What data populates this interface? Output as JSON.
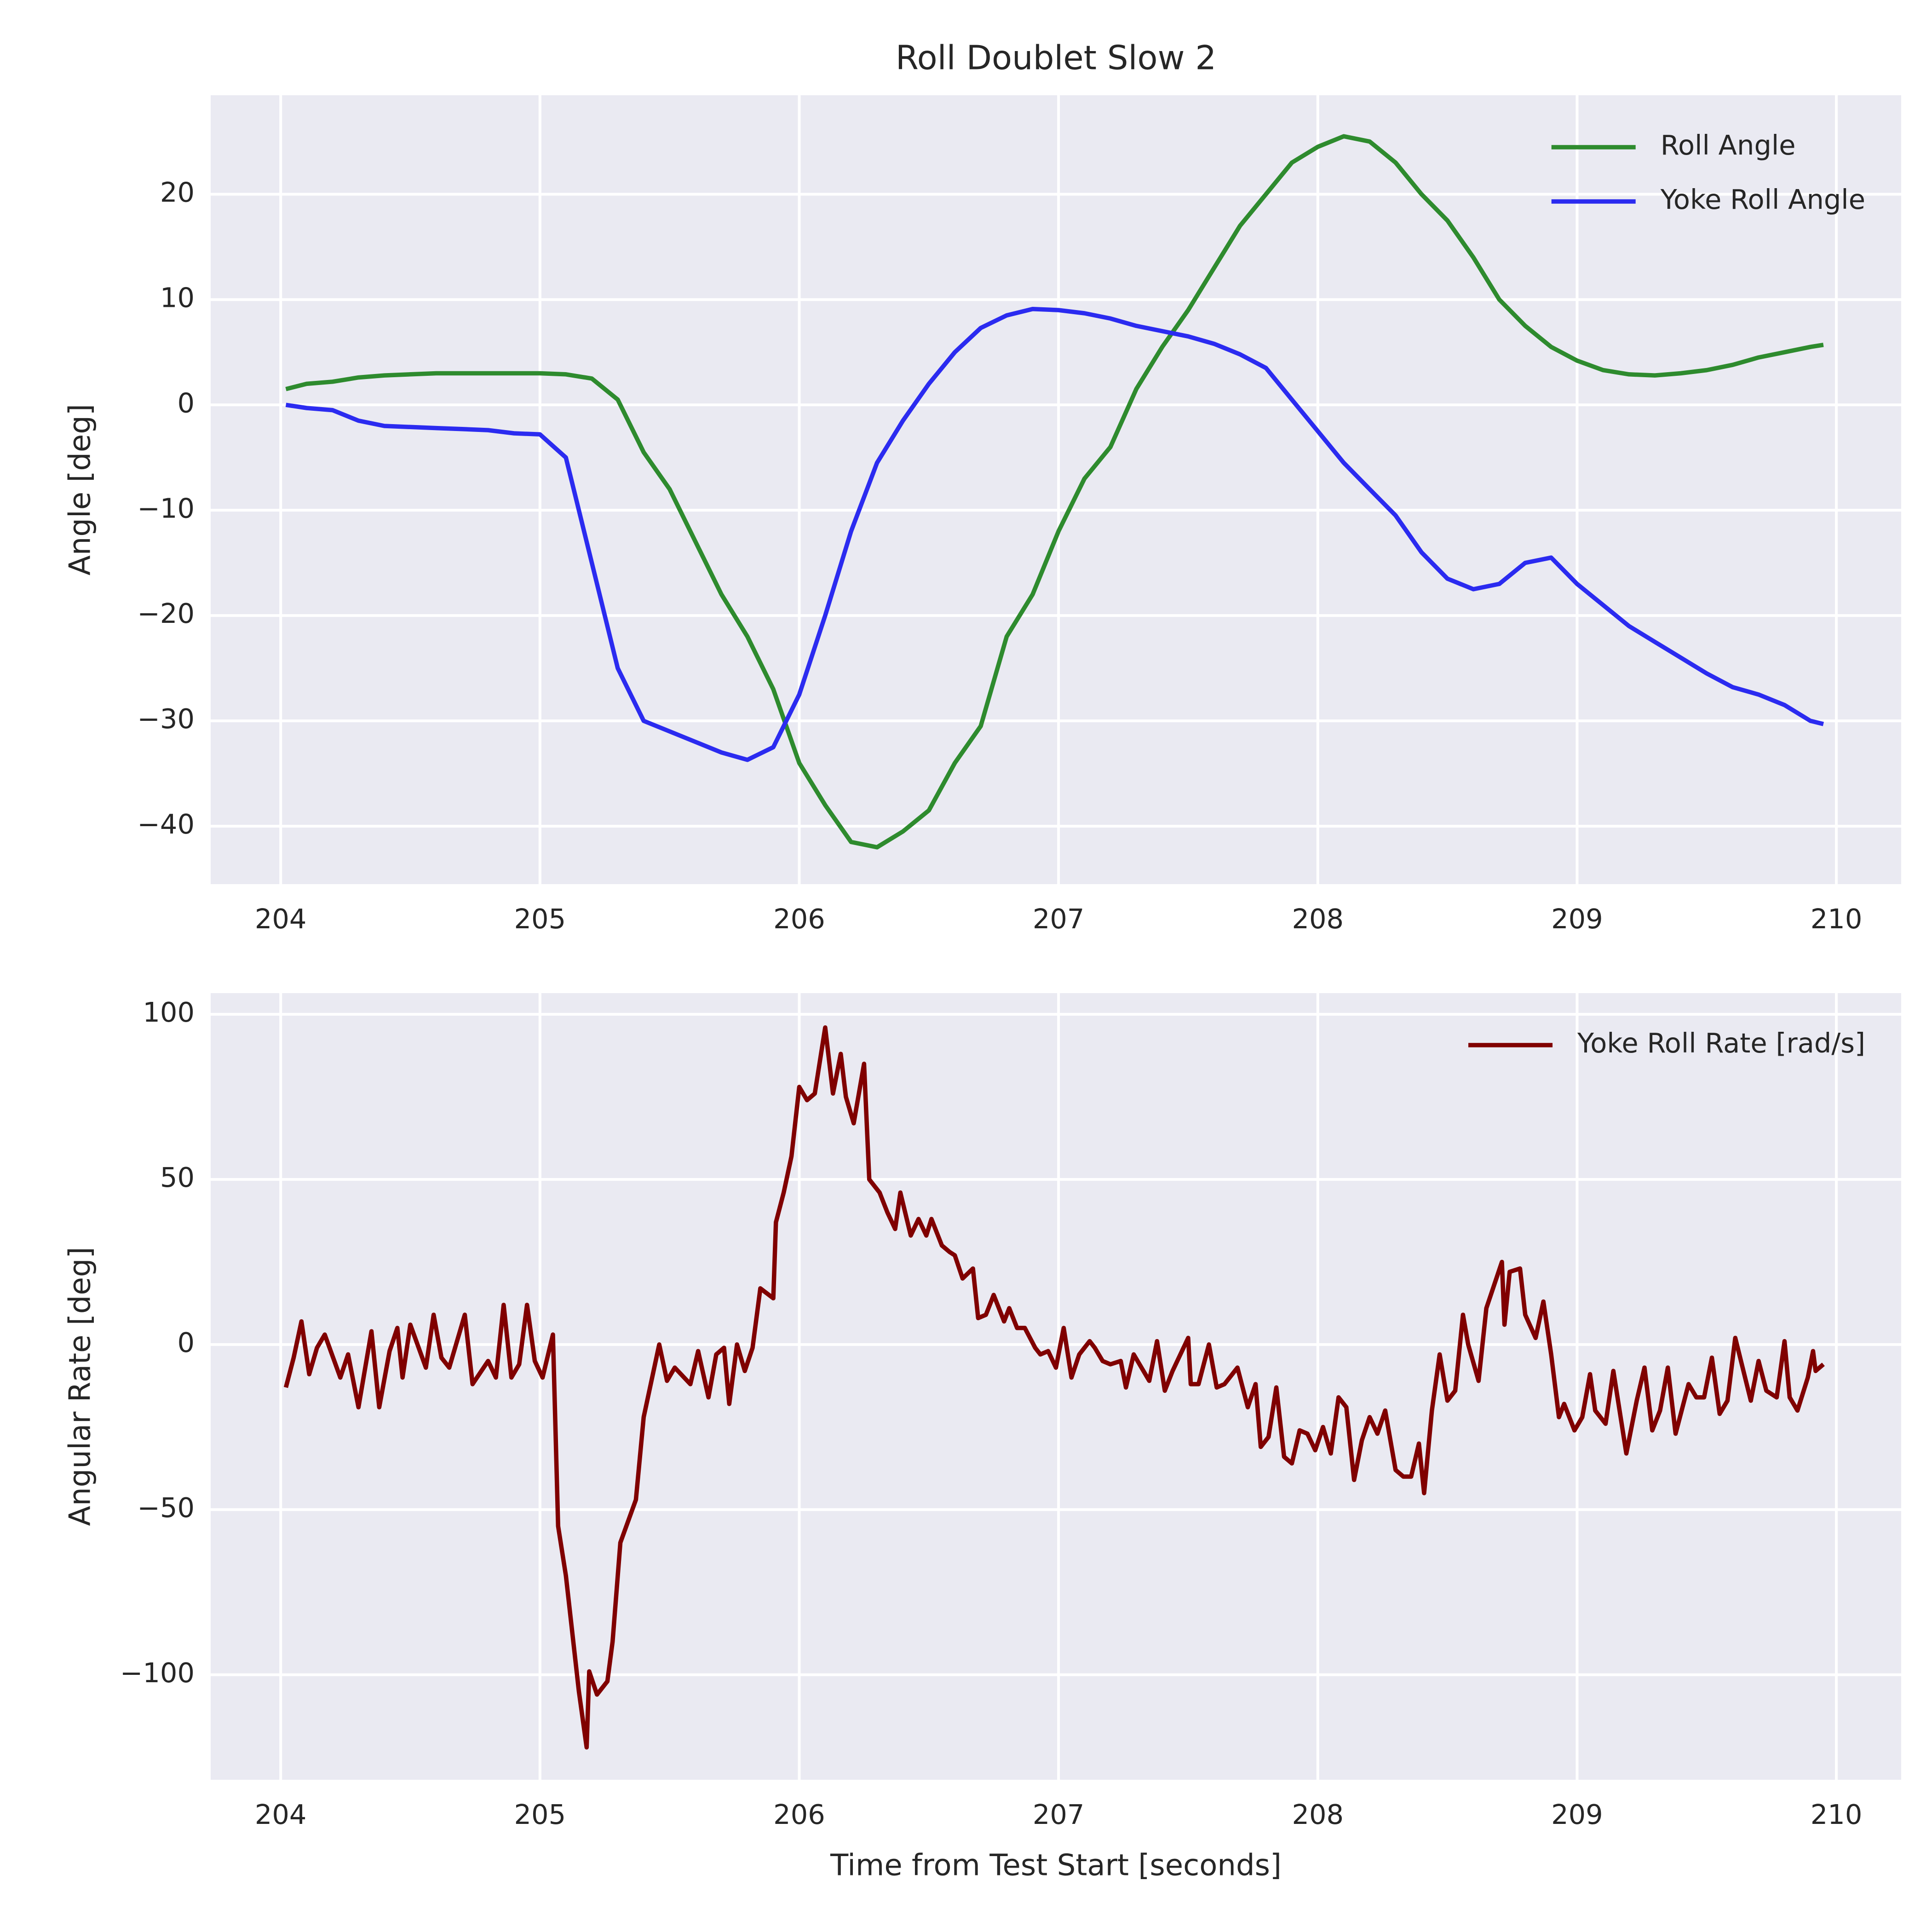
{
  "chart_data": [
    {
      "type": "line",
      "title": "Roll Doublet Slow 2",
      "ylabel": "Angle [deg]",
      "x": [
        204.02,
        204.1,
        204.2,
        204.3,
        204.4,
        204.5,
        204.6,
        204.7,
        204.8,
        204.9,
        205.0,
        205.1,
        205.2,
        205.3,
        205.4,
        205.5,
        205.6,
        205.7,
        205.8,
        205.9,
        206.0,
        206.1,
        206.2,
        206.3,
        206.4,
        206.5,
        206.6,
        206.7,
        206.8,
        206.9,
        207.0,
        207.1,
        207.2,
        207.3,
        207.4,
        207.5,
        207.6,
        207.7,
        207.8,
        207.9,
        208.0,
        208.1,
        208.2,
        208.3,
        208.4,
        208.5,
        208.6,
        208.7,
        208.8,
        208.9,
        209.0,
        209.1,
        209.2,
        209.3,
        209.4,
        209.5,
        209.6,
        209.7,
        209.8,
        209.9,
        209.95
      ],
      "series": [
        {
          "name": "Roll Angle",
          "color": "#2e8b2e",
          "values": [
            1.5,
            2,
            2.2,
            2.6,
            2.8,
            2.9,
            3,
            3,
            3,
            3,
            3,
            2.9,
            2.5,
            0.5,
            -4.5,
            -8,
            -13,
            -18,
            -22,
            -27,
            -34,
            -38,
            -41.5,
            -42,
            -40.5,
            -38.5,
            -34,
            -30.5,
            -22,
            -18,
            -12,
            -7,
            -4,
            1.5,
            5.5,
            9,
            13,
            17,
            20,
            23,
            24.5,
            25.5,
            25,
            23,
            20,
            17.5,
            14,
            10,
            7.5,
            5.5,
            4.2,
            3.3,
            2.9,
            2.8,
            3,
            3.3,
            3.8,
            4.5,
            5,
            5.5,
            5.7
          ]
        },
        {
          "name": "Yoke Roll Angle",
          "color": "#2b2bf0",
          "values": [
            0,
            -0.3,
            -0.5,
            -1.5,
            -2,
            -2.1,
            -2.2,
            -2.3,
            -2.4,
            -2.7,
            -2.8,
            -5,
            -15,
            -25,
            -30,
            -31,
            -32,
            -33,
            -33.7,
            -32.5,
            -27.5,
            -20,
            -12,
            -5.5,
            -1.5,
            2,
            5,
            7.3,
            8.5,
            9.1,
            9,
            8.7,
            8.2,
            7.5,
            7,
            6.5,
            5.8,
            4.8,
            3.5,
            0.5,
            -2.5,
            -5.5,
            -8,
            -10.5,
            -14,
            -16.5,
            -17.5,
            -17,
            -15,
            -14.5,
            -17,
            -19,
            -21,
            -22.5,
            -24,
            -25.5,
            -26.8,
            -27.5,
            -28.5,
            -30,
            -30.3
          ]
        }
      ],
      "xlim": [
        203.73,
        210.25
      ],
      "ylim": [
        -45.5,
        29.4
      ],
      "xticks": [
        204,
        205,
        206,
        207,
        208,
        209,
        210
      ],
      "yticks": [
        {
          "value": -40,
          "label": "−40"
        },
        {
          "value": -30,
          "label": "−30"
        },
        {
          "value": -20,
          "label": "−20"
        },
        {
          "value": -10,
          "label": "−10"
        },
        0,
        10,
        20
      ],
      "grid": true,
      "legend": "upper right"
    },
    {
      "type": "line",
      "ylabel": "Angular Rate [deg]",
      "xlabel": "Time from Test Start [seconds]",
      "x": [
        204.02,
        204.05,
        204.08,
        204.11,
        204.14,
        204.17,
        204.23,
        204.26,
        204.3,
        204.35,
        204.38,
        204.42,
        204.45,
        204.47,
        204.5,
        204.56,
        204.59,
        204.62,
        204.65,
        204.71,
        204.74,
        204.8,
        204.83,
        204.86,
        204.89,
        204.92,
        204.95,
        204.98,
        205.01,
        205.05,
        205.07,
        205.1,
        205.15,
        205.18,
        205.19,
        205.22,
        205.26,
        205.28,
        205.31,
        205.37,
        205.4,
        205.46,
        205.49,
        205.52,
        205.58,
        205.61,
        205.65,
        205.68,
        205.71,
        205.73,
        205.76,
        205.79,
        205.82,
        205.85,
        205.9,
        205.91,
        205.94,
        205.97,
        206.0,
        206.03,
        206.06,
        206.1,
        206.13,
        206.16,
        206.18,
        206.21,
        206.25,
        206.27,
        206.31,
        206.34,
        206.37,
        206.39,
        206.43,
        206.46,
        206.49,
        206.51,
        206.55,
        206.58,
        206.6,
        206.63,
        206.67,
        206.69,
        206.72,
        206.75,
        206.79,
        206.81,
        206.84,
        206.87,
        206.91,
        206.93,
        206.96,
        206.99,
        207.02,
        207.05,
        207.08,
        207.12,
        207.14,
        207.17,
        207.2,
        207.24,
        207.26,
        207.29,
        207.35,
        207.38,
        207.41,
        207.44,
        207.5,
        207.51,
        207.54,
        207.58,
        207.61,
        207.64,
        207.69,
        207.73,
        207.76,
        207.78,
        207.81,
        207.84,
        207.87,
        207.9,
        207.93,
        207.96,
        207.99,
        208.02,
        208.05,
        208.08,
        208.11,
        208.14,
        208.17,
        208.2,
        208.23,
        208.26,
        208.3,
        208.33,
        208.36,
        208.39,
        208.41,
        208.44,
        208.47,
        208.5,
        208.53,
        208.56,
        208.58,
        208.62,
        208.65,
        208.71,
        208.72,
        208.74,
        208.78,
        208.8,
        208.84,
        208.87,
        208.9,
        208.93,
        208.95,
        208.99,
        209.02,
        209.05,
        209.07,
        209.11,
        209.14,
        209.19,
        209.23,
        209.26,
        209.29,
        209.32,
        209.35,
        209.38,
        209.43,
        209.46,
        209.49,
        209.52,
        209.55,
        209.58,
        209.61,
        209.67,
        209.7,
        209.73,
        209.77,
        209.8,
        209.82,
        209.85,
        209.89,
        209.91,
        209.92,
        209.95
      ],
      "series": [
        {
          "name": "Yoke Roll Rate [rad/s]",
          "color": "#800000",
          "values": [
            -13,
            -4,
            7,
            -9,
            -1,
            3,
            -10,
            -3,
            -19,
            4,
            -19,
            -2,
            5,
            -10,
            6,
            -7,
            9,
            -4,
            -7,
            9,
            -12,
            -5,
            -10,
            12,
            -10,
            -6,
            12,
            -5,
            -10,
            3,
            -55,
            -70,
            -105,
            -122,
            -99,
            -106,
            -102,
            -90,
            -60,
            -47,
            -22,
            0,
            -11,
            -7,
            -12,
            -2,
            -16,
            -3,
            -1,
            -18,
            0,
            -8,
            -1,
            17,
            14,
            37,
            46,
            57,
            78,
            74,
            76,
            96,
            76,
            88,
            75,
            67,
            85,
            50,
            46,
            40,
            35,
            46,
            33,
            38,
            33,
            38,
            30,
            28,
            27,
            20,
            23,
            8,
            9,
            15,
            7,
            11,
            5,
            5,
            -1,
            -3,
            -2,
            -7,
            5,
            -10,
            -3,
            1,
            -1,
            -5,
            -6,
            -5,
            -13,
            -3,
            -11,
            1,
            -14,
            -8,
            2,
            -12,
            -12,
            0,
            -13,
            -12,
            -7,
            -19,
            -12,
            -31,
            -28,
            -13,
            -34,
            -36,
            -26,
            -27,
            -32,
            -25,
            -33,
            -16,
            -19,
            -41,
            -29,
            -22,
            -27,
            -20,
            -38,
            -40,
            -40,
            -30,
            -45,
            -20,
            -3,
            -17,
            -14,
            9,
            0,
            -11,
            11,
            25,
            6,
            22,
            23,
            9,
            2,
            13,
            -3,
            -22,
            -18,
            -26,
            -22,
            -9,
            -20,
            -24,
            -8,
            -33,
            -17,
            -7,
            -26,
            -20,
            -7,
            -27,
            -12,
            -16,
            -16,
            -4,
            -21,
            -17,
            2,
            -17,
            -5,
            -14,
            -16,
            1,
            -16,
            -20,
            -10,
            -2,
            -8,
            -6
          ]
        }
      ],
      "xlim": [
        203.73,
        210.25
      ],
      "ylim": [
        -131.8,
        106.4
      ],
      "xticks": [
        204,
        205,
        206,
        207,
        208,
        209,
        210
      ],
      "yticks": [
        {
          "value": -100,
          "label": "−100"
        },
        {
          "value": -50,
          "label": "−50"
        },
        0,
        50,
        100
      ],
      "grid": true,
      "legend": "upper right"
    }
  ]
}
